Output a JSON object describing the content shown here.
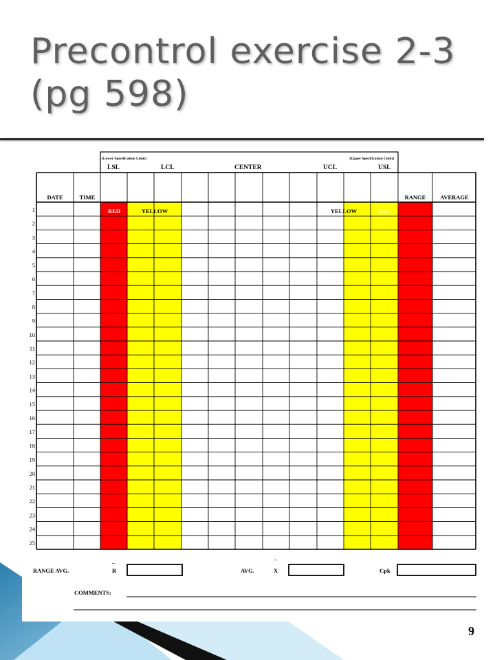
{
  "slide": {
    "title_line1": "Precontrol exercise 2-3",
    "title_line2": "(pg 598)",
    "page_number": "9"
  },
  "form": {
    "lsl_note": "[Lower Specification Limit]",
    "usl_note": "[Upper Specification Limit]",
    "top_labels": {
      "lsl": "LSL",
      "lcl": "LCL",
      "center": "CENTER",
      "ucl": "UCL",
      "usl": "USL"
    },
    "column_headers": {
      "date": "DATE",
      "time": "TIME",
      "range": "RANGE",
      "average": "AVERAGE"
    },
    "zone_labels": {
      "red_left": "RED",
      "yellow_left": "YELLOW",
      "yellow_right": "YELLOW",
      "red_right": "RED"
    },
    "row_numbers": [
      "1",
      "2",
      "3",
      "4",
      "5",
      "6",
      "7",
      "8",
      "9",
      "10",
      "11",
      "12",
      "13",
      "14",
      "15",
      "16",
      "17",
      "18",
      "19",
      "20",
      "21",
      "22",
      "23",
      "24",
      "25"
    ],
    "footer": {
      "range_avg_label": "RANGE AVG.",
      "r_symbol": "R",
      "r_bar": "–",
      "avg_label": "AVG.",
      "x_symbol": "X",
      "x_bar": "-",
      "cpk_label": "Cpk",
      "comments_label": "COMMENTS:"
    },
    "colors": {
      "red": "#ff0000",
      "yellow": "#ffff00"
    }
  }
}
